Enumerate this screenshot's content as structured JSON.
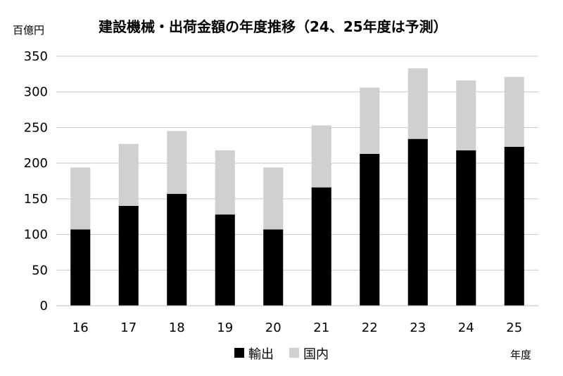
{
  "chart_data": {
    "type": "bar",
    "stacked": true,
    "title": "建設機械・出荷金額の年度推移（24、25年度は予測）",
    "ylabel": "百億円",
    "xlabel": "年度",
    "categories": [
      "16",
      "17",
      "18",
      "19",
      "20",
      "21",
      "22",
      "23",
      "24",
      "25"
    ],
    "series": [
      {
        "name": "輸出",
        "color": "#000000",
        "values": [
          107,
          140,
          157,
          128,
          107,
          166,
          213,
          234,
          218,
          223
        ]
      },
      {
        "name": "国内",
        "color": "#d0d0d0",
        "values": [
          87,
          87,
          88,
          90,
          87,
          87,
          93,
          99,
          98,
          98
        ]
      }
    ],
    "ylim": [
      0,
      350
    ],
    "yticks": [
      0,
      50,
      100,
      150,
      200,
      250,
      300,
      350
    ],
    "grid": true,
    "legend_position": "bottom"
  }
}
